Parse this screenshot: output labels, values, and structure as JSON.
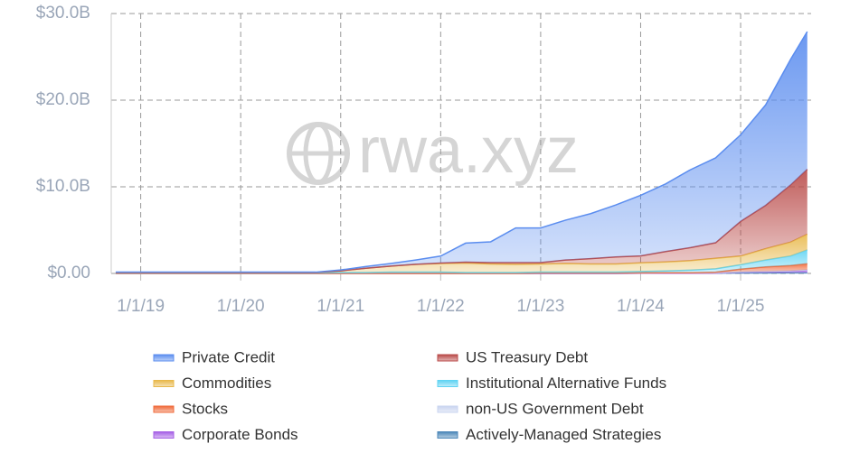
{
  "chart_data": {
    "type": "stacked-area",
    "watermark": "rwa.xyz",
    "x": [
      "10/1/18",
      "1/1/19",
      "4/1/19",
      "7/1/19",
      "10/1/19",
      "1/1/20",
      "4/1/20",
      "7/1/20",
      "10/1/20",
      "1/1/21",
      "4/1/21",
      "7/1/21",
      "10/1/21",
      "1/1/22",
      "4/1/22",
      "7/1/22",
      "10/1/22",
      "1/1/23",
      "4/1/23",
      "7/1/23",
      "10/1/23",
      "1/1/24",
      "4/1/24",
      "7/1/24",
      "10/1/24",
      "1/1/25",
      "4/1/25",
      "7/1/25",
      "9/1/25"
    ],
    "xlim": [
      "9/15/18",
      "9/15/25"
    ],
    "xticks": [
      "1/1/19",
      "1/1/20",
      "1/1/21",
      "1/1/22",
      "1/1/23",
      "1/1/24",
      "1/1/25"
    ],
    "ylim": [
      0,
      30
    ],
    "yticks": [
      {
        "value": 0,
        "label": "$0.00"
      },
      {
        "value": 10,
        "label": "$10.0B"
      },
      {
        "value": 20,
        "label": "$20.0B"
      },
      {
        "value": 30,
        "label": "$30.0B"
      }
    ],
    "grid": true,
    "series": [
      {
        "name": "Private Credit",
        "color": "#5b8def",
        "values": [
          0.05,
          0.05,
          0.05,
          0.05,
          0.05,
          0.05,
          0.05,
          0.05,
          0.05,
          0.1,
          0.2,
          0.3,
          0.5,
          0.8,
          2.2,
          2.4,
          4.0,
          4.0,
          4.6,
          5.2,
          6.0,
          7.0,
          7.8,
          9.0,
          9.8,
          10.0,
          11.6,
          14.5,
          15.9
        ]
      },
      {
        "name": "US Treasury Debt",
        "color": "#b94a48",
        "values": [
          0,
          0,
          0,
          0,
          0,
          0,
          0,
          0,
          0,
          0,
          0,
          0,
          0,
          0.05,
          0.1,
          0.15,
          0.2,
          0.15,
          0.4,
          0.6,
          0.8,
          0.8,
          1.2,
          1.5,
          1.8,
          4.0,
          5.0,
          6.6,
          7.5
        ]
      },
      {
        "name": "Commodities",
        "color": "#e8b84a",
        "values": [
          0.05,
          0.05,
          0.05,
          0.05,
          0.05,
          0.05,
          0.05,
          0.05,
          0.05,
          0.2,
          0.5,
          0.7,
          0.9,
          1.0,
          1.1,
          1.0,
          0.95,
          0.95,
          1.0,
          0.95,
          0.95,
          1.0,
          1.05,
          1.1,
          1.2,
          1.0,
          1.3,
          1.6,
          1.8
        ]
      },
      {
        "name": "Institutional Alternative Funds",
        "color": "#5fd3f3",
        "values": [
          0.05,
          0.05,
          0.05,
          0.05,
          0.05,
          0.05,
          0.05,
          0.05,
          0.05,
          0.1,
          0.1,
          0.15,
          0.15,
          0.15,
          0.1,
          0.1,
          0.1,
          0.1,
          0.1,
          0.1,
          0.1,
          0.15,
          0.2,
          0.3,
          0.4,
          0.5,
          0.8,
          1.1,
          1.6
        ]
      },
      {
        "name": "Stocks",
        "color": "#f06a3a",
        "values": [
          0,
          0,
          0,
          0,
          0,
          0,
          0,
          0,
          0,
          0,
          0,
          0,
          0,
          0,
          0,
          0,
          0,
          0,
          0,
          0,
          0,
          0,
          0,
          0,
          0.05,
          0.3,
          0.5,
          0.6,
          0.7
        ]
      },
      {
        "name": "non-US Government Debt",
        "color": "#c9d4f0",
        "values": [
          0,
          0,
          0,
          0,
          0,
          0,
          0,
          0,
          0,
          0,
          0,
          0,
          0,
          0,
          0,
          0,
          0,
          0.05,
          0.05,
          0.05,
          0.05,
          0.05,
          0.05,
          0.05,
          0.05,
          0.05,
          0.05,
          0.05,
          0.05
        ]
      },
      {
        "name": "Corporate Bonds",
        "color": "#a45ee5",
        "values": [
          0,
          0,
          0,
          0,
          0,
          0,
          0,
          0,
          0,
          0,
          0,
          0,
          0,
          0,
          0,
          0,
          0,
          0,
          0,
          0,
          0,
          0,
          0,
          0,
          0,
          0.1,
          0.15,
          0.2,
          0.3
        ]
      },
      {
        "name": "Actively-Managed Strategies",
        "color": "#4a86b8",
        "values": [
          0,
          0,
          0,
          0,
          0,
          0,
          0,
          0,
          0,
          0,
          0,
          0,
          0,
          0,
          0,
          0,
          0,
          0,
          0,
          0,
          0,
          0.02,
          0.03,
          0.03,
          0.04,
          0.05,
          0.05,
          0.06,
          0.07
        ]
      }
    ]
  }
}
